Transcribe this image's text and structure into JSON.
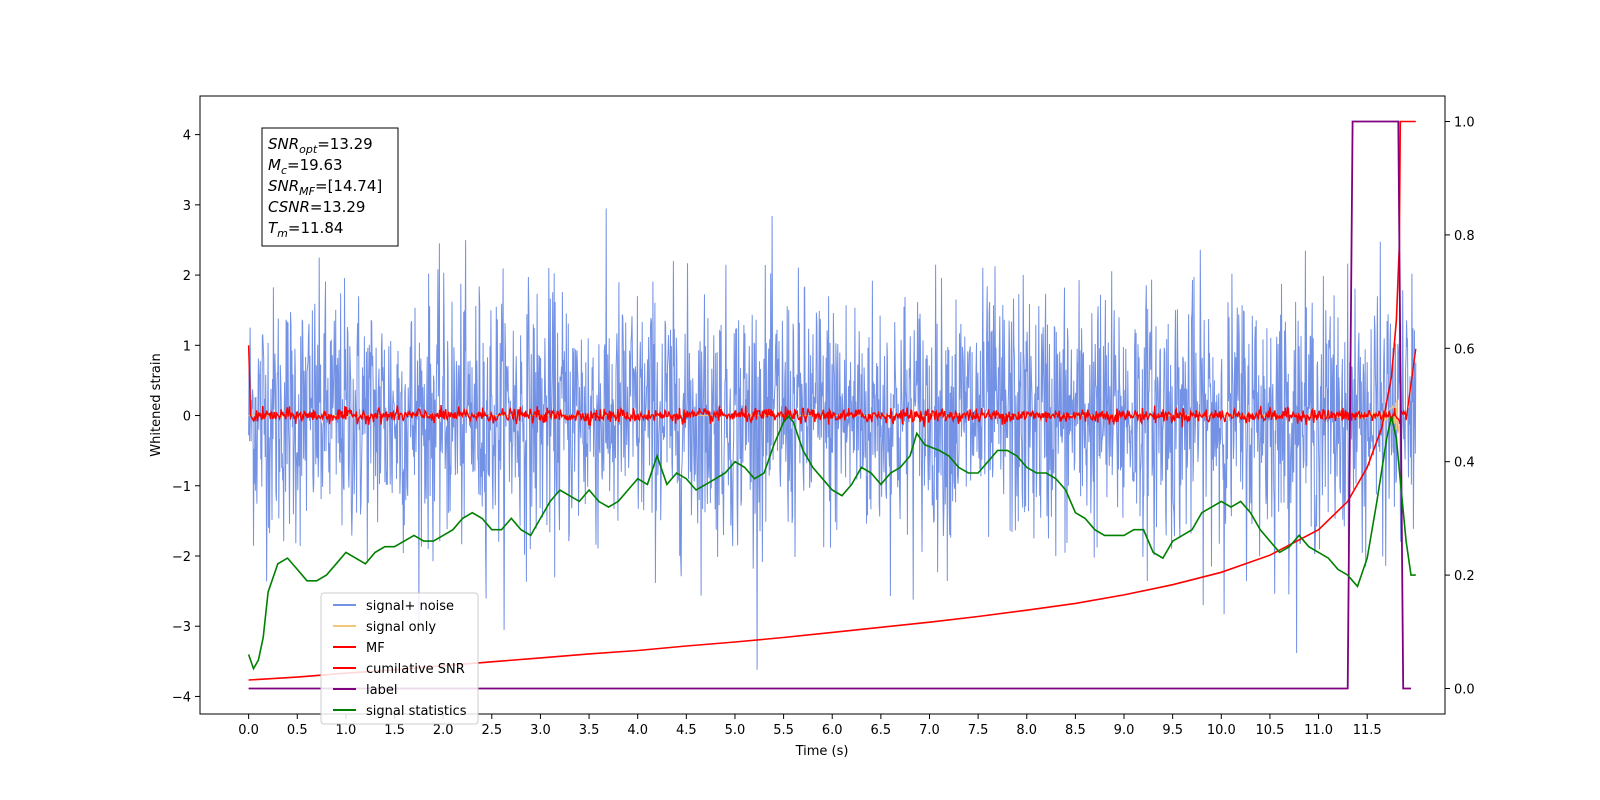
{
  "chart_data": {
    "type": "line",
    "xlabel": "Time (s)",
    "ylabel": "Whitened strain",
    "xlim": [
      -0.5,
      12.3
    ],
    "ylim": [
      -4.25,
      4.55
    ],
    "y2lim": [
      -0.045,
      1.045
    ],
    "x_ticks": [
      "0.0",
      "0.5",
      "1.0",
      "1.5",
      "2.0",
      "2.5",
      "3.0",
      "3.5",
      "4.0",
      "4.5",
      "5.0",
      "5.5",
      "6.0",
      "6.5",
      "7.0",
      "7.5",
      "8.0",
      "8.5",
      "9.0",
      "9.5",
      "10.0",
      "10.5",
      "11.0",
      "11.5"
    ],
    "y_ticks": [
      "4",
      "3",
      "2",
      "1",
      "0",
      "−1",
      "−2",
      "−3",
      "−4"
    ],
    "y2_ticks": [
      "1.0",
      "0.8",
      "0.6",
      "0.4",
      "0.2",
      "0.0"
    ],
    "grid": false,
    "legend_position": "lower-left",
    "annotation": {
      "lines": [
        {
          "var": "SNR",
          "sub": "opt",
          "value": "=13.29"
        },
        {
          "var": "M",
          "sub": "c",
          "value": "=19.63"
        },
        {
          "var": "SNR",
          "sub": "MF",
          "value": "=[14.74]"
        },
        {
          "var": "CSNR",
          "sub": "",
          "value": "=13.29"
        },
        {
          "var": "T",
          "sub": "m",
          "value": "=11.84"
        }
      ]
    },
    "series": [
      {
        "name": "signal+ noise",
        "color": "#7391e5",
        "axis": "left",
        "style": "noise",
        "x_range": [
          0.0,
          12.0
        ],
        "amplitude_std": 0.9
      },
      {
        "name": "signal only",
        "color": "#f2c779",
        "axis": "left",
        "style": "chirp",
        "x_range": [
          0.0,
          11.85
        ],
        "envelope_peak": 1.0,
        "peak_x": 11.84
      },
      {
        "name": "MF",
        "color": "#ff0000",
        "axis": "left",
        "style": "mf",
        "x": [
          0.0,
          0.02,
          0.05,
          0.1,
          11.9,
          12.0
        ],
        "y": [
          1.0,
          0.0,
          0.0,
          0.0,
          0.0,
          0.95
        ],
        "noise_std": 0.05
      },
      {
        "name": "cumilative SNR",
        "color": "#ff0000",
        "axis": "right",
        "x": [
          0.0,
          0.5,
          1.0,
          1.5,
          2.0,
          2.5,
          3.0,
          3.5,
          4.0,
          4.5,
          5.0,
          5.5,
          6.0,
          6.5,
          7.0,
          7.5,
          8.0,
          8.5,
          9.0,
          9.5,
          10.0,
          10.5,
          11.0,
          11.3,
          11.5,
          11.65,
          11.75,
          11.8,
          11.83,
          11.84,
          11.9,
          12.0
        ],
        "y": [
          0.015,
          0.02,
          0.027,
          0.033,
          0.04,
          0.047,
          0.054,
          0.061,
          0.067,
          0.075,
          0.082,
          0.09,
          0.099,
          0.108,
          0.117,
          0.127,
          0.138,
          0.15,
          0.165,
          0.183,
          0.205,
          0.235,
          0.28,
          0.33,
          0.39,
          0.46,
          0.55,
          0.65,
          0.78,
          1.0,
          1.0,
          1.0
        ]
      },
      {
        "name": "label",
        "color": "#800080",
        "axis": "right",
        "x": [
          0.0,
          11.3,
          11.35,
          11.82,
          11.87,
          11.95
        ],
        "y": [
          0.0,
          0.0,
          1.0,
          1.0,
          0.0,
          0.0
        ]
      },
      {
        "name": "signal statistics",
        "color": "#008000",
        "axis": "right",
        "x": [
          0.0,
          0.05,
          0.1,
          0.15,
          0.2,
          0.3,
          0.4,
          0.5,
          0.6,
          0.7,
          0.8,
          0.9,
          1.0,
          1.1,
          1.2,
          1.3,
          1.4,
          1.5,
          1.6,
          1.7,
          1.8,
          1.9,
          2.0,
          2.1,
          2.2,
          2.3,
          2.4,
          2.5,
          2.6,
          2.7,
          2.8,
          2.9,
          3.0,
          3.1,
          3.2,
          3.3,
          3.4,
          3.5,
          3.6,
          3.7,
          3.8,
          3.9,
          4.0,
          4.1,
          4.2,
          4.3,
          4.4,
          4.5,
          4.6,
          4.7,
          4.8,
          4.9,
          5.0,
          5.1,
          5.2,
          5.3,
          5.4,
          5.5,
          5.55,
          5.6,
          5.7,
          5.8,
          5.9,
          6.0,
          6.1,
          6.2,
          6.3,
          6.4,
          6.5,
          6.6,
          6.7,
          6.8,
          6.87,
          6.95,
          7.1,
          7.2,
          7.3,
          7.4,
          7.5,
          7.6,
          7.7,
          7.8,
          7.9,
          8.0,
          8.1,
          8.2,
          8.3,
          8.4,
          8.5,
          8.6,
          8.7,
          8.8,
          8.9,
          9.0,
          9.1,
          9.2,
          9.3,
          9.4,
          9.5,
          9.6,
          9.7,
          9.8,
          9.9,
          10.0,
          10.1,
          10.2,
          10.3,
          10.4,
          10.5,
          10.6,
          10.7,
          10.8,
          10.9,
          11.0,
          11.1,
          11.2,
          11.3,
          11.35,
          11.4,
          11.5,
          11.6,
          11.7,
          11.75,
          11.8,
          11.85,
          11.9,
          11.95,
          12.0
        ],
        "y": [
          0.06,
          0.035,
          0.05,
          0.09,
          0.17,
          0.22,
          0.23,
          0.21,
          0.19,
          0.19,
          0.2,
          0.22,
          0.24,
          0.23,
          0.22,
          0.24,
          0.25,
          0.25,
          0.26,
          0.27,
          0.26,
          0.26,
          0.27,
          0.28,
          0.3,
          0.31,
          0.3,
          0.28,
          0.28,
          0.3,
          0.28,
          0.27,
          0.3,
          0.33,
          0.35,
          0.34,
          0.33,
          0.35,
          0.33,
          0.32,
          0.33,
          0.35,
          0.37,
          0.36,
          0.41,
          0.36,
          0.38,
          0.37,
          0.35,
          0.36,
          0.37,
          0.38,
          0.4,
          0.39,
          0.37,
          0.38,
          0.43,
          0.47,
          0.48,
          0.47,
          0.42,
          0.39,
          0.37,
          0.35,
          0.34,
          0.36,
          0.39,
          0.38,
          0.36,
          0.38,
          0.39,
          0.41,
          0.45,
          0.43,
          0.42,
          0.41,
          0.39,
          0.38,
          0.38,
          0.4,
          0.42,
          0.42,
          0.41,
          0.39,
          0.38,
          0.38,
          0.37,
          0.35,
          0.31,
          0.3,
          0.28,
          0.27,
          0.27,
          0.27,
          0.28,
          0.28,
          0.24,
          0.23,
          0.26,
          0.27,
          0.28,
          0.31,
          0.32,
          0.33,
          0.32,
          0.33,
          0.31,
          0.28,
          0.26,
          0.24,
          0.25,
          0.27,
          0.25,
          0.24,
          0.23,
          0.21,
          0.2,
          0.19,
          0.18,
          0.23,
          0.33,
          0.44,
          0.48,
          0.44,
          0.35,
          0.26,
          0.2,
          0.2
        ]
      }
    ]
  }
}
